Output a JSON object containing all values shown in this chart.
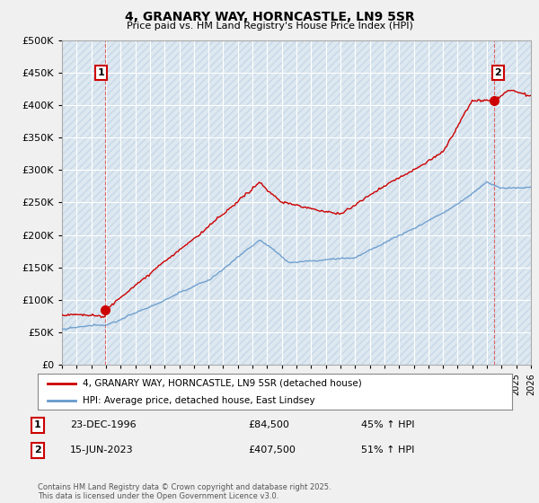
{
  "title1": "4, GRANARY WAY, HORNCASTLE, LN9 5SR",
  "title2": "Price paid vs. HM Land Registry's House Price Index (HPI)",
  "legend_label1": "4, GRANARY WAY, HORNCASTLE, LN9 5SR (detached house)",
  "legend_label2": "HPI: Average price, detached house, East Lindsey",
  "annotation1_label": "1",
  "annotation1_date": "23-DEC-1996",
  "annotation1_price": "£84,500",
  "annotation1_hpi": "45% ↑ HPI",
  "annotation2_label": "2",
  "annotation2_date": "15-JUN-2023",
  "annotation2_price": "£407,500",
  "annotation2_hpi": "51% ↑ HPI",
  "copyright": "Contains HM Land Registry data © Crown copyright and database right 2025.\nThis data is licensed under the Open Government Licence v3.0.",
  "xmin": 1994,
  "xmax": 2026,
  "ymin": 0,
  "ymax": 500000,
  "yticks": [
    0,
    50000,
    100000,
    150000,
    200000,
    250000,
    300000,
    350000,
    400000,
    450000,
    500000
  ],
  "xticks": [
    1994,
    1995,
    1996,
    1997,
    1998,
    1999,
    2000,
    2001,
    2002,
    2003,
    2004,
    2005,
    2006,
    2007,
    2008,
    2009,
    2010,
    2011,
    2012,
    2013,
    2014,
    2015,
    2016,
    2017,
    2018,
    2019,
    2020,
    2021,
    2022,
    2023,
    2024,
    2025,
    2026
  ],
  "plot_bg_color": "#dde8f0",
  "hatch_color": "#c8d8e8",
  "grid_color": "#ffffff",
  "line1_color": "#cc0000",
  "line2_color": "#6699cc",
  "purchase1_x": 1996.97,
  "purchase1_y": 84500,
  "purchase2_x": 2023.46,
  "purchase2_y": 407500
}
